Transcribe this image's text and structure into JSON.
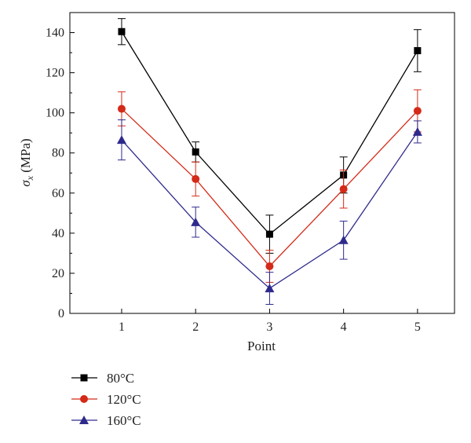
{
  "chart_data": {
    "type": "line",
    "title": "",
    "xlabel": "Point",
    "ylabel_symbol": "σ",
    "ylabel_subscript": "x",
    "ylabel_unit": " (MPa)",
    "x": [
      1,
      2,
      3,
      4,
      5
    ],
    "xlim": [
      0.3,
      5.5
    ],
    "ylim": [
      0,
      150
    ],
    "xticks": [
      "1",
      "2",
      "3",
      "4",
      "5"
    ],
    "yticks": [
      "0",
      "20",
      "40",
      "60",
      "80",
      "100",
      "120",
      "140"
    ],
    "grid": false,
    "legend_position": "bottom-left",
    "series": [
      {
        "name": "80°C",
        "color": "#000000",
        "marker": "square",
        "values": [
          140.5,
          80.5,
          39.5,
          69.0,
          131.0
        ],
        "errors": [
          6.5,
          5.0,
          9.5,
          9.0,
          10.5
        ]
      },
      {
        "name": "120°C",
        "color": "#d42a18",
        "marker": "circle",
        "values": [
          102.0,
          67.0,
          23.5,
          62.0,
          101.0
        ],
        "errors": [
          8.5,
          8.5,
          8.0,
          9.5,
          10.5
        ]
      },
      {
        "name": "160°C",
        "color": "#2e2a8c",
        "marker": "triangle",
        "values": [
          86.5,
          45.5,
          12.5,
          36.5,
          90.5
        ],
        "errors": [
          10.0,
          7.5,
          8.0,
          9.5,
          5.5
        ]
      }
    ]
  }
}
